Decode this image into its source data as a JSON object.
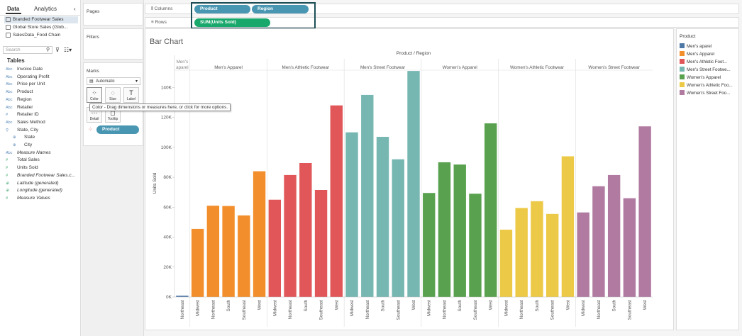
{
  "left_pane": {
    "tabs": [
      "Data",
      "Analytics"
    ],
    "collapse": "‹",
    "sources": [
      "Branded Footwear Sales",
      "Global Store Sales (Glob...",
      "SalesData_Food Chain"
    ],
    "search_placeholder": "Search",
    "tables_header": "Tables",
    "fields": [
      {
        "type": "Abc",
        "name": "Invoice Date",
        "kind": "dim"
      },
      {
        "type": "Abc",
        "name": "Operating Profit",
        "kind": "dim"
      },
      {
        "type": "Abc",
        "name": "Price per Unit",
        "kind": "dim"
      },
      {
        "type": "Abc",
        "name": "Product",
        "kind": "dim"
      },
      {
        "type": "Abc",
        "name": "Region",
        "kind": "dim"
      },
      {
        "type": "Abc",
        "name": "Retailer",
        "kind": "dim"
      },
      {
        "type": "#",
        "name": "Retailer ID",
        "kind": "dim"
      },
      {
        "type": "Abc",
        "name": "Sales Method",
        "kind": "dim"
      },
      {
        "type": "⚲",
        "name": "State, City",
        "kind": "dim"
      },
      {
        "type": "⊕",
        "name": "State",
        "kind": "dim",
        "indent": true
      },
      {
        "type": "⊕",
        "name": "City",
        "kind": "dim",
        "indent": true
      },
      {
        "type": "Abc",
        "name": "Measure Names",
        "kind": "dim",
        "italic": true
      },
      {
        "type": "#",
        "name": "Total Sales",
        "kind": "meas"
      },
      {
        "type": "#",
        "name": "Units Sold",
        "kind": "meas"
      },
      {
        "type": "#",
        "name": "Branded Footwear Sales.c...",
        "kind": "meas",
        "italic": true
      },
      {
        "type": "⊕",
        "name": "Latitude (generated)",
        "kind": "meas",
        "italic": true
      },
      {
        "type": "⊕",
        "name": "Longitude (generated)",
        "kind": "meas",
        "italic": true
      },
      {
        "type": "#",
        "name": "Measure Values",
        "kind": "meas",
        "italic": true
      }
    ]
  },
  "cards": {
    "pages": "Pages",
    "filters": "Filters",
    "marks": "Marks",
    "mark_type": "Automatic",
    "buttons": [
      "Color",
      "Size",
      "Label",
      "Detail",
      "Tooltip"
    ],
    "product_pill": "Product"
  },
  "shelves": {
    "columns_label": "Columns",
    "rows_label": "Rows",
    "columns_pills": [
      "Product",
      "Region"
    ],
    "rows_pill": "SUM(Units Sold)"
  },
  "tooltip": "Color - Drag dimensions or measures here, or click for more options.",
  "legend": {
    "title": "Product",
    "items": [
      {
        "name": "Men's aparel",
        "color": "#4e79a7"
      },
      {
        "name": "Men's Apparel",
        "color": "#f28e2b"
      },
      {
        "name": "Men's Athletic Foot...",
        "color": "#e15759"
      },
      {
        "name": "Men's Street Footwe...",
        "color": "#76b7b2"
      },
      {
        "name": "Women's Apparel",
        "color": "#59a14f"
      },
      {
        "name": "Women's Athletic Foo...",
        "color": "#edc948"
      },
      {
        "name": "Women's Street Foo...",
        "color": "#b07aa1"
      }
    ]
  },
  "chart_data": {
    "type": "bar",
    "title": "Bar Chart",
    "header": "Product / Region",
    "ylabel": "Units Sold",
    "ylim": [
      0,
      152000
    ],
    "yticks": [
      "0K",
      "20K",
      "40K",
      "60K",
      "80K",
      "100K",
      "120K",
      "140K"
    ],
    "yticks_values": [
      0,
      20000,
      40000,
      60000,
      80000,
      100000,
      120000,
      140000
    ],
    "groups": [
      {
        "name": "Men's aparel",
        "color": "#4e79a7",
        "regions": [
          "Northeast"
        ],
        "values": [
          900
        ]
      },
      {
        "name": "Men's Apparel",
        "color": "#f28e2b",
        "regions": [
          "Midwest",
          "Northeast",
          "South",
          "Southeast",
          "West"
        ],
        "values": [
          45500,
          61000,
          60800,
          54500,
          84000
        ]
      },
      {
        "name": "Men's Athletic Footwear",
        "color": "#e15759",
        "regions": [
          "Midwest",
          "Northeast",
          "South",
          "Southeast",
          "West"
        ],
        "values": [
          65000,
          81500,
          89500,
          71500,
          128000
        ]
      },
      {
        "name": "Men's Street Footwear",
        "color": "#76b7b2",
        "regions": [
          "Midwest",
          "Northeast",
          "South",
          "Southeast",
          "West"
        ],
        "values": [
          110000,
          135000,
          107000,
          92000,
          151000
        ]
      },
      {
        "name": "Women's Apparel",
        "color": "#59a14f",
        "regions": [
          "Midwest",
          "Northeast",
          "South",
          "Southeast",
          "West"
        ],
        "values": [
          69500,
          90000,
          88500,
          69000,
          116000
        ]
      },
      {
        "name": "Women's Athletic Footwear",
        "color": "#edc948",
        "regions": [
          "Midwest",
          "Northeast",
          "South",
          "Southeast",
          "West"
        ],
        "values": [
          45000,
          59500,
          64000,
          55500,
          94000
        ]
      },
      {
        "name": "Women's Street Footwear",
        "color": "#b07aa1",
        "regions": [
          "Midwest",
          "Northeast",
          "South",
          "Southeast",
          "West"
        ],
        "values": [
          56500,
          74000,
          81500,
          66000,
          114000
        ]
      }
    ]
  }
}
